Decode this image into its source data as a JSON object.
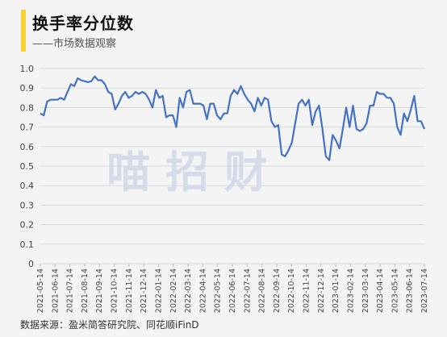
{
  "header": {
    "title": "换手率分位数",
    "subtitle": "——市场数据观察",
    "accent_color": "#f7d33a"
  },
  "watermark": "喵 招 财",
  "footer": {
    "source": "数据来源：盈米简答研究院、同花顺iFinD"
  },
  "colors": {
    "line": "#4472c4",
    "grid": "#d9d9d9",
    "watermark": "#cfd6e8"
  },
  "chart_data": {
    "type": "line",
    "title": "",
    "xlabel": "",
    "ylabel": "",
    "ylim": [
      0,
      1.0
    ],
    "yticks": [
      "0",
      "0.1",
      "0.2",
      "0.3",
      "0.4",
      "0.5",
      "0.6",
      "0.7",
      "0.8",
      "0.9",
      "1.0"
    ],
    "xticks": [
      "2021-05-14",
      "2021-06-14",
      "2021-07-14",
      "2021-08-14",
      "2021-09-14",
      "2021-10-14",
      "2021-11-14",
      "2021-12-14",
      "2022-01-14",
      "2022-02-14",
      "2022-03-14",
      "2022-04-14",
      "2022-05-14",
      "2022-06-14",
      "2022-07-14",
      "2022-08-14",
      "2022-09-14",
      "2022-10-14",
      "2022-11-14",
      "2022-12-14",
      "2023-01-14",
      "2023-02-14",
      "2023-03-14",
      "2023-04-14",
      "2023-05-14",
      "2023-06-14",
      "2023-07-14"
    ],
    "grid": true,
    "series": [
      {
        "values": [
          0.77,
          0.76,
          0.83,
          0.84,
          0.84,
          0.84,
          0.85,
          0.84,
          0.88,
          0.92,
          0.91,
          0.95,
          0.94,
          0.935,
          0.93,
          0.935,
          0.96,
          0.94,
          0.94,
          0.92,
          0.88,
          0.87,
          0.79,
          0.82,
          0.86,
          0.88,
          0.85,
          0.86,
          0.88,
          0.87,
          0.88,
          0.87,
          0.84,
          0.8,
          0.89,
          0.85,
          0.86,
          0.75,
          0.76,
          0.76,
          0.7,
          0.85,
          0.8,
          0.88,
          0.89,
          0.82,
          0.82,
          0.82,
          0.81,
          0.74,
          0.82,
          0.82,
          0.76,
          0.74,
          0.77,
          0.77,
          0.86,
          0.89,
          0.87,
          0.91,
          0.87,
          0.84,
          0.82,
          0.78,
          0.85,
          0.81,
          0.85,
          0.84,
          0.73,
          0.7,
          0.71,
          0.56,
          0.55,
          0.58,
          0.62,
          0.72,
          0.82,
          0.84,
          0.81,
          0.84,
          0.71,
          0.78,
          0.81,
          0.69,
          0.55,
          0.53,
          0.66,
          0.63,
          0.59,
          0.69,
          0.8,
          0.7,
          0.81,
          0.69,
          0.68,
          0.69,
          0.72,
          0.81,
          0.81,
          0.88,
          0.87,
          0.87,
          0.85,
          0.85,
          0.82,
          0.7,
          0.66,
          0.77,
          0.73,
          0.79,
          0.86,
          0.73,
          0.73,
          0.69
        ]
      }
    ]
  }
}
